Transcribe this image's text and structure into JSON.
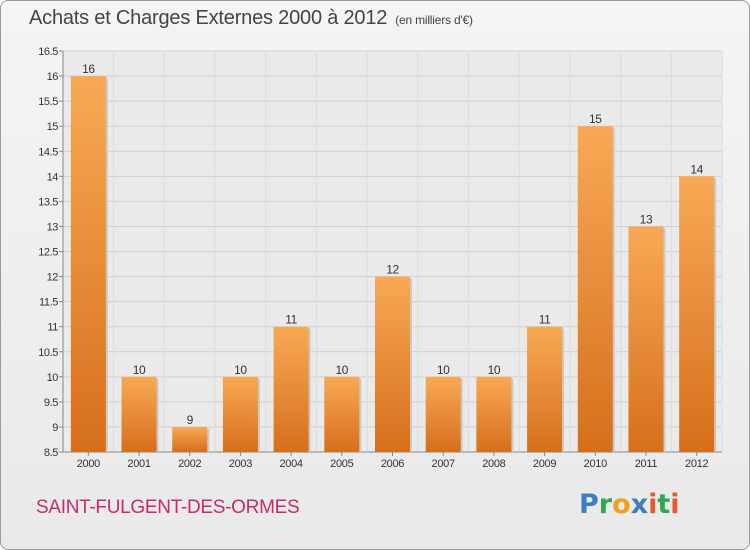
{
  "header": {
    "title": "Achats et Charges Externes 2000 à 2012",
    "subtitle": "(en milliers d'€)"
  },
  "footer": {
    "commune": "SAINT-FULGENT-DES-ORMES",
    "logo_text": "Proxiti"
  },
  "colors": {
    "bar_light": "#f8a955",
    "bar_dark": "#d66f1c",
    "commune": "#c82a6b"
  },
  "chart_data": {
    "type": "bar",
    "title": "Achats et Charges Externes 2000 à 2012",
    "subtitle": "(en milliers d'€)",
    "xlabel": "",
    "ylabel": "",
    "categories": [
      "2000",
      "2001",
      "2002",
      "2003",
      "2004",
      "2005",
      "2006",
      "2007",
      "2008",
      "2009",
      "2010",
      "2011",
      "2012"
    ],
    "values": [
      16,
      10,
      9,
      10,
      11,
      10,
      12,
      10,
      10,
      11,
      15,
      13,
      14
    ],
    "data_labels": [
      "16",
      "10",
      "9",
      "10",
      "11",
      "10",
      "12",
      "10",
      "10",
      "11",
      "15",
      "13",
      "14"
    ],
    "ylim": [
      8.5,
      16.5
    ],
    "yticks": [
      8.5,
      9,
      9.5,
      10,
      10.5,
      11,
      11.5,
      12,
      12.5,
      13,
      13.5,
      14,
      14.5,
      15,
      15.5,
      16,
      16.5
    ],
    "ytick_labels": [
      "8.5",
      "9",
      "9.5",
      "10",
      "10.5",
      "11",
      "11.5",
      "12",
      "12.5",
      "13",
      "13.5",
      "14",
      "14.5",
      "15",
      "15.5",
      "16",
      "16.5"
    ],
    "grid": true,
    "legend": "none"
  }
}
